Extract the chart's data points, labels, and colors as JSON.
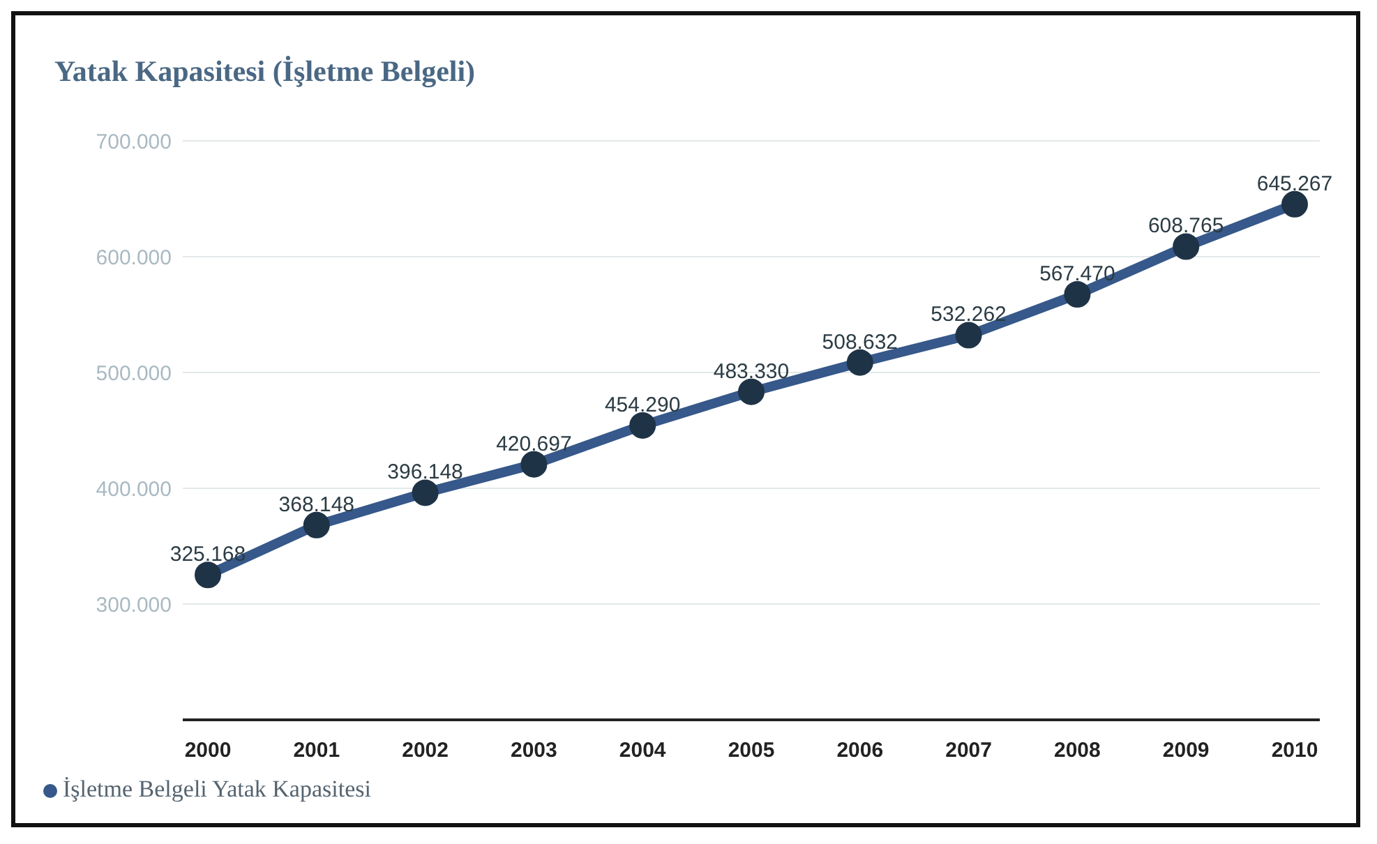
{
  "chart_data": {
    "type": "line",
    "title": "Yatak Kapasitesi (İşletme Belgeli)",
    "categories": [
      "2000",
      "2001",
      "2002",
      "2003",
      "2004",
      "2005",
      "2006",
      "2007",
      "2008",
      "2009",
      "2010"
    ],
    "series": [
      {
        "name": "İşletme Belgeli Yatak Kapasitesi",
        "color": "#36588a",
        "values": [
          325168,
          368148,
          396148,
          420697,
          454290,
          483330,
          508632,
          532262,
          567470,
          608765,
          645267
        ],
        "value_labels": [
          "325.168",
          "368.148",
          "396.148",
          "420.697",
          "454.290",
          "483.330",
          "508.632",
          "532.262",
          "567.470",
          "608.765",
          "645.267"
        ]
      }
    ],
    "ylim": [
      200000,
      700000
    ],
    "yticks": [
      {
        "value": 300000,
        "label": "300.000"
      },
      {
        "value": 400000,
        "label": "400.000"
      },
      {
        "value": 500000,
        "label": "500.000"
      },
      {
        "value": 600000,
        "label": "600.000"
      },
      {
        "value": 700000,
        "label": "700.000"
      }
    ],
    "grid": "y",
    "legend": "bottom left",
    "marker": "circle",
    "line_style": "solid"
  }
}
